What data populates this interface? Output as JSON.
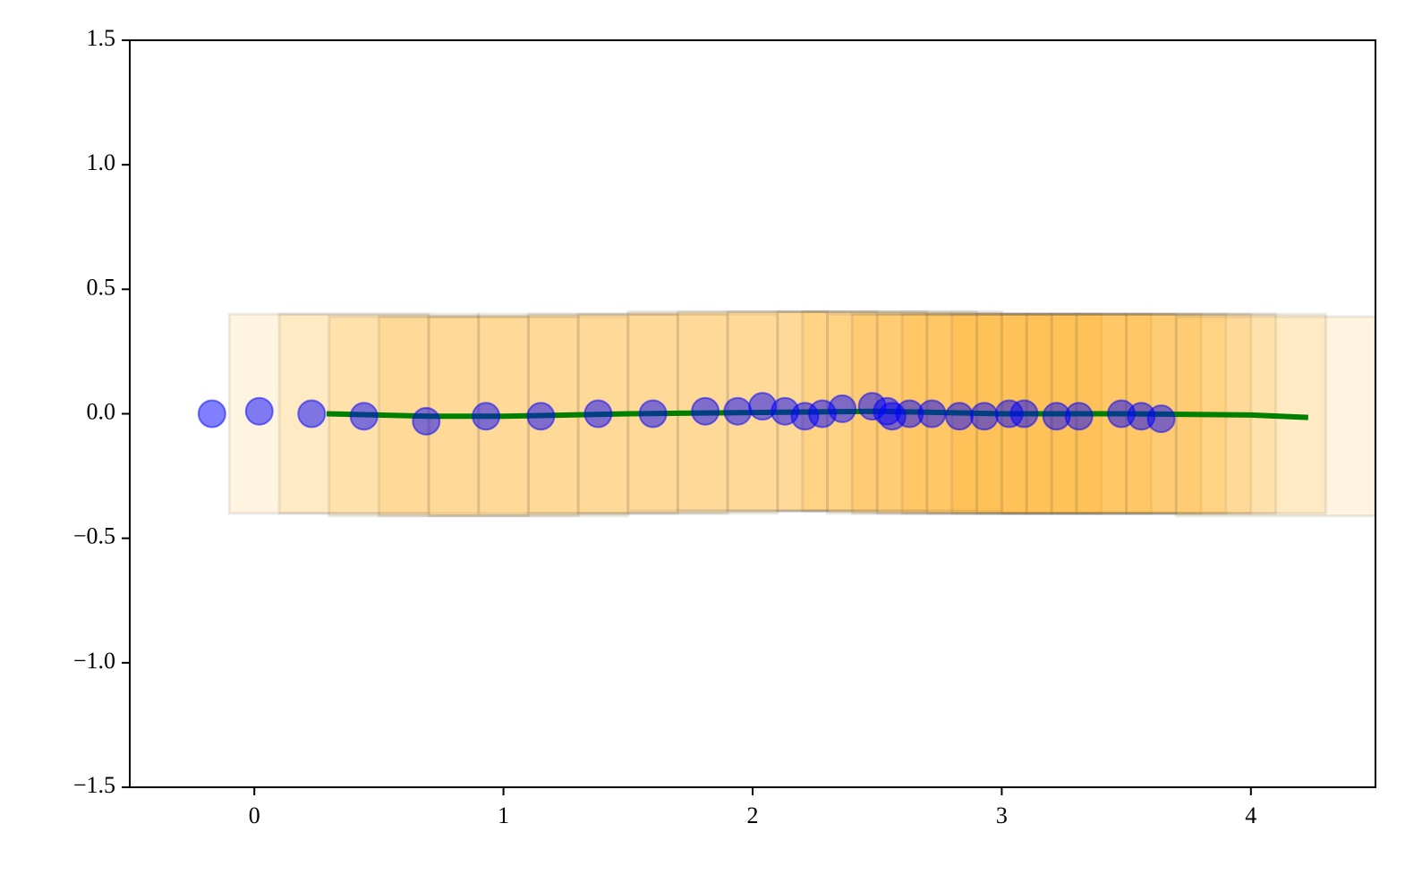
{
  "chart_data": {
    "type": "scatter",
    "xlim": [
      -0.5,
      4.5
    ],
    "ylim": [
      -1.5,
      1.5
    ],
    "xticks": [
      0,
      1,
      2,
      3,
      4
    ],
    "yticks": [
      {
        "value": -1.5,
        "label": "−1.5"
      },
      {
        "value": -1.0,
        "label": "−1.0"
      },
      {
        "value": -0.5,
        "label": "−0.5"
      },
      {
        "value": 0,
        "label": "0.0"
      },
      {
        "value": 0.5,
        "label": "0.5"
      },
      {
        "value": 1.0,
        "label": "1.0"
      },
      {
        "value": 1.5,
        "label": "1.5"
      }
    ],
    "layers": [
      {
        "type": "box",
        "color": "orange",
        "width": 0.8,
        "height": 0.8,
        "x": [
          0.3,
          0.5,
          0.7,
          0.9,
          1.1,
          1.3,
          1.5,
          1.7,
          1.9,
          2.1,
          2.3,
          2.5,
          2.6,
          2.7,
          2.8,
          2.9,
          3.0,
          3.1,
          3.2,
          3.3,
          3.4,
          3.5,
          3.6,
          3.7,
          3.9,
          4.1
        ],
        "y": [
          0,
          0,
          -0.01,
          -0.01,
          -0.01,
          0,
          0,
          0,
          0.01,
          0.01,
          0.01,
          0.01,
          0.01,
          0,
          0,
          0,
          0,
          0,
          0,
          0,
          0,
          0,
          0,
          0,
          0,
          -0.01
        ]
      },
      {
        "type": "line",
        "color": "green",
        "x": [
          0.29,
          0.7,
          1.0,
          1.5,
          2.0,
          2.5,
          3.0,
          3.5,
          4.0,
          4.23
        ],
        "y": [
          0,
          -0.01,
          -0.01,
          0,
          0.005,
          0.01,
          0,
          0,
          -0.005,
          -0.015
        ]
      },
      {
        "type": "scatter",
        "color": "blue",
        "x": [
          -0.17,
          0.02,
          0.23,
          0.44,
          0.69,
          0.93,
          1.15,
          1.38,
          1.6,
          1.81,
          1.94,
          2.04,
          2.13,
          2.21,
          2.28,
          2.36,
          2.48,
          2.54,
          2.56,
          2.63,
          2.72,
          2.83,
          2.93,
          3.03,
          3.09,
          3.22,
          3.31,
          3.48,
          3.56,
          3.64
        ],
        "y": [
          0,
          0.01,
          0,
          -0.01,
          -0.03,
          -0.01,
          -0.01,
          0,
          0,
          0.01,
          0.01,
          0.03,
          0.01,
          -0.01,
          0,
          0.02,
          0.03,
          0.01,
          -0.01,
          0,
          0,
          -0.01,
          -0.01,
          0,
          0,
          -0.01,
          -0.01,
          0,
          -0.01,
          -0.02
        ]
      }
    ]
  }
}
